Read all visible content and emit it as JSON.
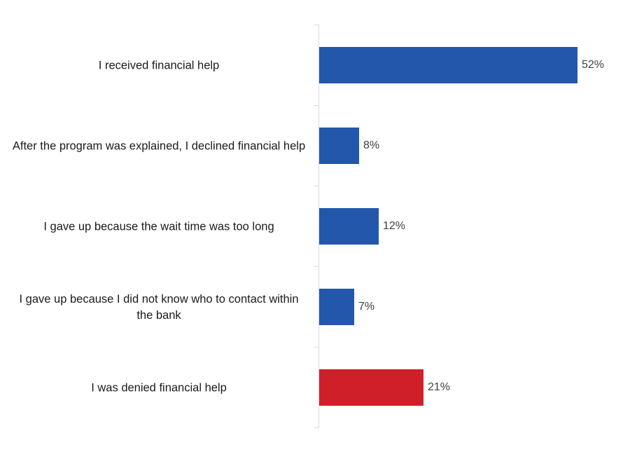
{
  "chart_data": {
    "type": "bar",
    "orientation": "horizontal",
    "title": "",
    "xlabel": "",
    "ylabel": "",
    "xlim": [
      0,
      60
    ],
    "grid": false,
    "legend": null,
    "categories": [
      "I received financial help",
      "After the program was explained, I declined financial help",
      "I gave up because the wait time was too long",
      "I gave up because I did not know who to contact within the bank",
      "I was denied financial help"
    ],
    "values": [
      52,
      8,
      12,
      7,
      21
    ],
    "data_labels": [
      "52%",
      "8%",
      "12%",
      "7%",
      "21%"
    ],
    "colors": [
      "#2257ab",
      "#2257ab",
      "#2257ab",
      "#2257ab",
      "#cf2029"
    ]
  },
  "rows": [
    {
      "label": "I received financial help",
      "value_label": "52%",
      "value": 52,
      "color": "#2257ab"
    },
    {
      "label": "After the program was explained, I declined financial help",
      "value_label": "8%",
      "value": 8,
      "color": "#2257ab"
    },
    {
      "label": "I gave up because the wait time was too long",
      "value_label": "12%",
      "value": 12,
      "color": "#2257ab"
    },
    {
      "label": "I gave up because I did not know who to contact within the bank",
      "value_label": "7%",
      "value": 7,
      "color": "#2257ab"
    },
    {
      "label": "I was denied financial help",
      "value_label": "21%",
      "value": 21,
      "color": "#cf2029"
    }
  ]
}
